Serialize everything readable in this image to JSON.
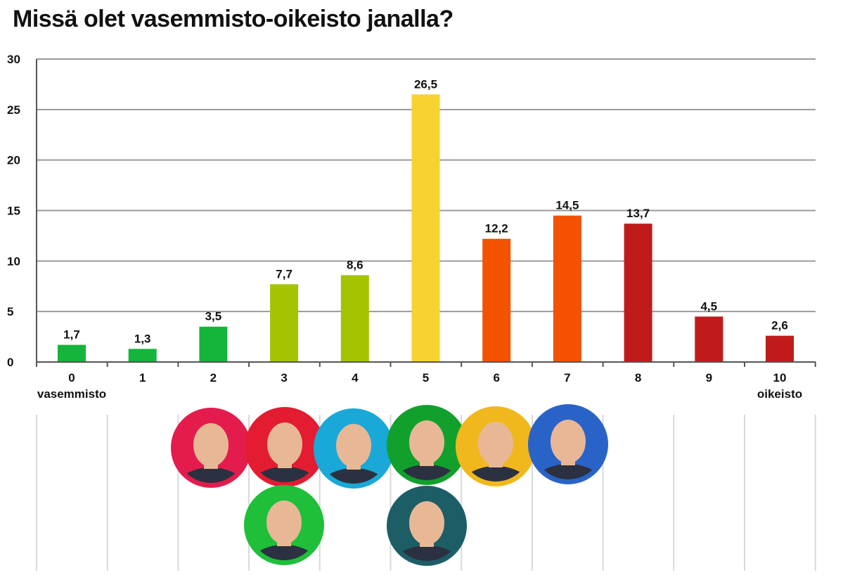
{
  "chart_data": {
    "type": "bar",
    "title": "Missä olet vasemmisto-oikeisto janalla?",
    "categories": [
      "0",
      "1",
      "2",
      "3",
      "4",
      "5",
      "6",
      "7",
      "8",
      "9",
      "10"
    ],
    "values": [
      1.7,
      1.3,
      3.5,
      7.7,
      8.6,
      26.5,
      12.2,
      14.5,
      13.7,
      4.5,
      2.6
    ],
    "value_labels": [
      "1,7",
      "1,3",
      "3,5",
      "7,7",
      "8,6",
      "26,5",
      "12,2",
      "14,5",
      "13,7",
      "4,5",
      "2,6"
    ],
    "bar_colors": [
      "#14b53a",
      "#14b53a",
      "#14b53a",
      "#a5c300",
      "#a5c300",
      "#f7d332",
      "#f45100",
      "#f45100",
      "#c01b1b",
      "#c01b1b",
      "#c01b1b"
    ],
    "yticks": [
      0,
      5,
      10,
      15,
      20,
      25,
      30
    ],
    "ylim": [
      0,
      30
    ],
    "axis_end_labels": {
      "left": "vasemmisto",
      "right": "oikeisto"
    },
    "xlabel": "",
    "ylabel": "",
    "grid": true,
    "legend": "none"
  },
  "portraits": [
    {
      "ring": "#e31c4d",
      "bg": "#e31c4d"
    },
    {
      "ring": "#e31c32",
      "bg": "#e31c32"
    },
    {
      "ring": "#1aa8d8",
      "bg": "#1aa8d8"
    },
    {
      "ring": "#12a02c",
      "bg": "#12a02c"
    },
    {
      "ring": "#f0b81c",
      "bg": "#f0b81c"
    },
    {
      "ring": "#2a63c7",
      "bg": "#2a63c7"
    },
    {
      "ring": "#1fbf3a",
      "bg": "#1fbf3a"
    },
    {
      "ring": "#1d5e66",
      "bg": "#1d5e66"
    }
  ],
  "colors": {
    "grid": "#9a9a9a",
    "axis": "#555555",
    "divider": "#d8d8d8",
    "skin": "#e8b896",
    "suit": "#2b3140"
  }
}
